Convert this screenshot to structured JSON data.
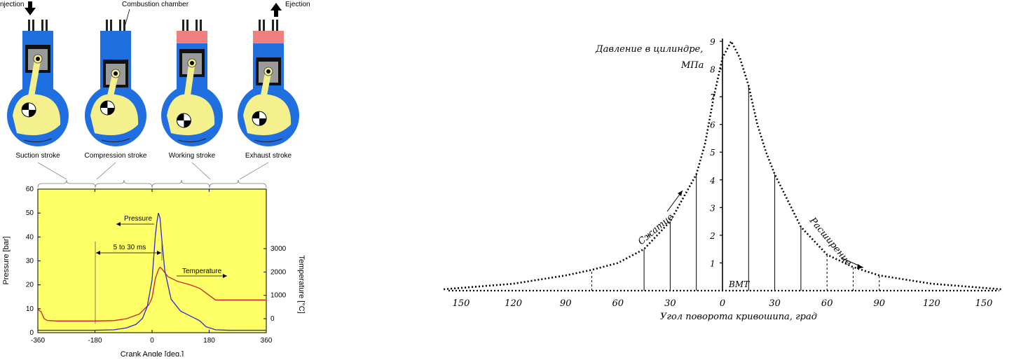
{
  "engine": {
    "top_labels": {
      "injection": "njection",
      "combustion_chamber": "Combustion chamber",
      "ejection": "Ejection"
    },
    "strokes": [
      "Suction stroke",
      "Compression stroke",
      "Working stroke",
      "Exhaust stroke"
    ],
    "colors": {
      "crankcase": "#1f6fe0",
      "yellow": "#f4f08e",
      "gas": "#f08080",
      "piston": "#9a9a9a"
    }
  },
  "chart_data": [
    {
      "type": "line",
      "background": "#ffff66",
      "xlabel": "Crank Angle [deg.]",
      "ylabel": "Pressure [bar]",
      "y2label": "Temperature [°C]",
      "xlim": [
        -360,
        360
      ],
      "ylim": [
        0,
        60
      ],
      "y2ticks": [
        0,
        1000,
        2000,
        3000
      ],
      "xticks": [
        -360,
        -180,
        0,
        180,
        360
      ],
      "yticks": [
        0,
        10,
        20,
        30,
        40,
        50,
        60
      ],
      "annotations": {
        "pressure": "Pressure",
        "temperature": "Temperature",
        "duration": "5 to 30 ms"
      },
      "series": [
        {
          "name": "Pressure",
          "color": "#2a2ad0",
          "x": [
            -360,
            -300,
            -180,
            -120,
            -80,
            -50,
            -30,
            -15,
            0,
            10,
            15,
            20,
            25,
            30,
            40,
            60,
            90,
            120,
            150,
            170,
            200,
            240,
            300,
            360
          ],
          "y": [
            1,
            1,
            1,
            1.2,
            2,
            3.5,
            6,
            11,
            22,
            40,
            46,
            50,
            48,
            40,
            26,
            14,
            9,
            7,
            5,
            2.5,
            1.2,
            1,
            1,
            1
          ]
        },
        {
          "name": "Temperature",
          "color": "#d02020",
          "x": [
            -360,
            -350,
            -340,
            -330,
            -300,
            -240,
            -180,
            -120,
            -80,
            -40,
            -10,
            0,
            10,
            20,
            25,
            30,
            50,
            80,
            120,
            150,
            180,
            200,
            220,
            260,
            300,
            360
          ],
          "y": [
            400,
            300,
            0,
            -80,
            -100,
            -100,
            -100,
            -80,
            0,
            200,
            600,
            900,
            1700,
            2100,
            2200,
            2150,
            1800,
            1600,
            1450,
            1300,
            1000,
            800,
            800,
            800,
            800,
            800
          ]
        }
      ]
    },
    {
      "type": "line",
      "ylabel": "Давление в цилиндре, МПа",
      "xlabel": "Угол поворота кривошипа, град",
      "xlim": [
        -150,
        150
      ],
      "ylim": [
        0,
        9
      ],
      "xticks": [
        -150,
        -120,
        -90,
        -60,
        -30,
        0,
        30,
        60,
        90,
        120,
        150
      ],
      "xtick_labels": [
        "150",
        "120",
        "90",
        "60",
        "30",
        "0",
        "30",
        "60",
        "90",
        "120",
        "150"
      ],
      "yticks": [
        1,
        2,
        3,
        4,
        5,
        6,
        7,
        8,
        9
      ],
      "annotations": {
        "tdc": "ВМТ",
        "compression": "Сжатие",
        "expansion": "Расширение"
      },
      "series": [
        {
          "name": "",
          "x": [
            -160,
            -150,
            -120,
            -90,
            -75,
            -60,
            -45,
            -30,
            -15,
            -10,
            -5,
            0,
            5,
            10,
            15,
            20,
            25,
            30,
            45,
            60,
            75,
            90,
            120,
            150,
            160
          ],
          "y": [
            0.05,
            0.1,
            0.25,
            0.55,
            0.75,
            1.0,
            1.5,
            2.5,
            4.2,
            5.3,
            7.0,
            8.4,
            9.0,
            8.4,
            7.4,
            6.0,
            5.0,
            4.2,
            2.3,
            1.3,
            0.85,
            0.55,
            0.25,
            0.1,
            0.05
          ]
        }
      ],
      "vertical_lines_x": [
        -75,
        -45,
        -30,
        -15,
        0,
        15,
        30,
        45,
        60,
        75,
        90
      ]
    }
  ]
}
